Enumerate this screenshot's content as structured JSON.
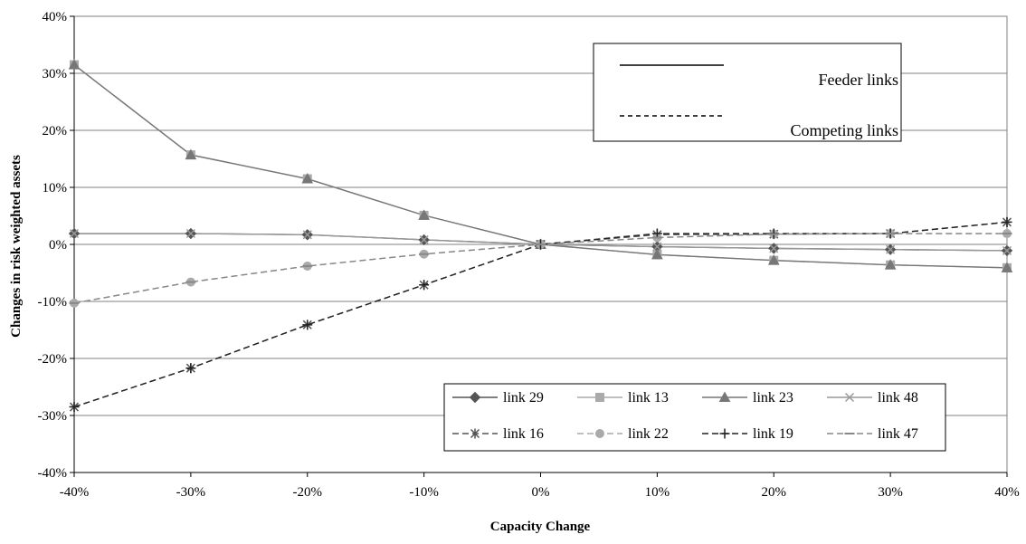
{
  "chart_data": {
    "type": "line",
    "xlabel": "Capacity Change",
    "ylabel": "Changes in risk weighted assets",
    "x": [
      -40,
      -30,
      -20,
      -10,
      0,
      10,
      20,
      30,
      40
    ],
    "x_tick_labels": [
      "-40%",
      "-30%",
      "-20%",
      "-10%",
      "0%",
      "10%",
      "20%",
      "30%",
      "40%"
    ],
    "y_ticks": [
      -40,
      -30,
      -20,
      -10,
      0,
      10,
      20,
      30,
      40
    ],
    "y_tick_labels": [
      "-40%",
      "-30%",
      "-20%",
      "-10%",
      "0%",
      "10%",
      "20%",
      "30%",
      "40%"
    ],
    "xlim": [
      -40,
      40
    ],
    "ylim": [
      -40,
      40
    ],
    "grid": "horizontal",
    "style_legend": {
      "placement": "top-right",
      "items": [
        {
          "label": "Feeder links",
          "line": "solid"
        },
        {
          "label": "Competing links",
          "line": "dashed"
        }
      ]
    },
    "legend_placement": "bottom-right",
    "series": [
      {
        "name": "link 29",
        "marker": "diamond",
        "line": "solid",
        "color": "#555555",
        "values": [
          1.9,
          1.9,
          1.7,
          0.8,
          0,
          -0.4,
          -0.7,
          -0.9,
          -1.1
        ]
      },
      {
        "name": "link 13",
        "marker": "square",
        "line": "solid",
        "color": "#aaaaaa",
        "values": [
          31.5,
          15.7,
          11.5,
          5.1,
          0,
          -1.8,
          -2.8,
          -3.6,
          -4.1
        ]
      },
      {
        "name": "link 23",
        "marker": "triangle",
        "line": "solid",
        "color": "#777777",
        "values": [
          31.5,
          15.7,
          11.5,
          5.1,
          0,
          -1.8,
          -2.8,
          -3.6,
          -4.1
        ]
      },
      {
        "name": "link 48",
        "marker": "x",
        "line": "solid",
        "color": "#999999",
        "values": [
          1.9,
          1.9,
          1.7,
          0.8,
          0,
          -0.4,
          -0.7,
          -0.9,
          -1.1
        ]
      },
      {
        "name": "link 16",
        "marker": "asterisk",
        "line": "dashed",
        "color": "#555555",
        "values": [
          -28.5,
          -21.7,
          -14.1,
          -7.1,
          0,
          1.7,
          1.8,
          1.9,
          3.9
        ]
      },
      {
        "name": "link 22",
        "marker": "circle",
        "line": "dashed",
        "color": "#aaaaaa",
        "values": [
          -10.3,
          -6.6,
          -3.8,
          -1.7,
          0,
          1.2,
          1.8,
          1.9,
          1.9
        ]
      },
      {
        "name": "link 19",
        "marker": "plus",
        "line": "dashed",
        "color": "#222222",
        "values": [
          -28.5,
          -21.7,
          -14.1,
          -7.1,
          0,
          1.9,
          1.9,
          1.9,
          3.9
        ]
      },
      {
        "name": "link 47",
        "marker": "dash",
        "line": "dashed",
        "color": "#888888",
        "values": [
          -10.3,
          -6.6,
          -3.8,
          -1.7,
          0,
          1.2,
          1.8,
          1.9,
          1.9
        ]
      }
    ]
  }
}
